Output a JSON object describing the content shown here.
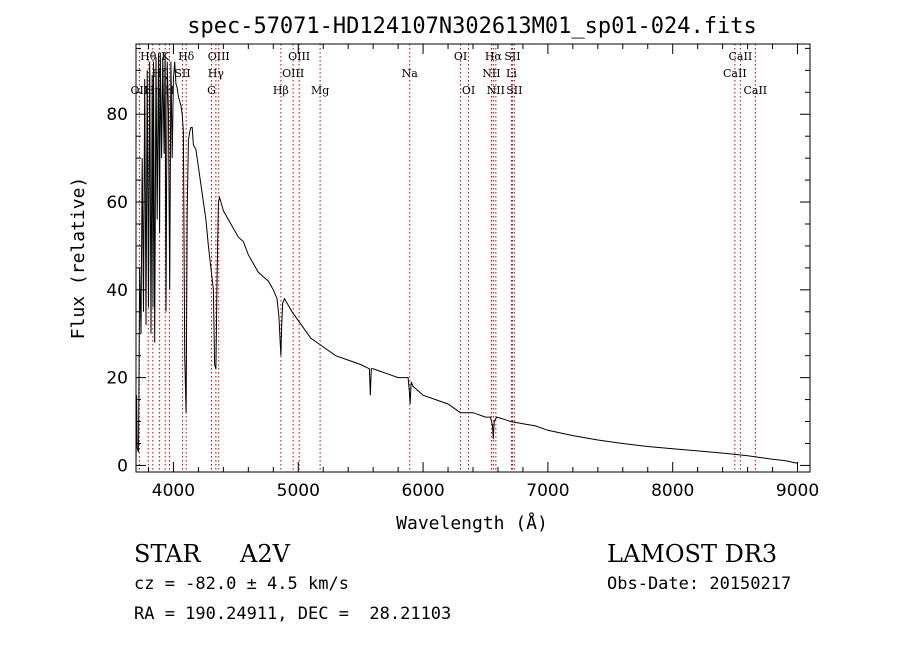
{
  "chart_data": {
    "type": "line",
    "title": "spec-57071-HD124107N302613M01_sp01-024.fits",
    "xlabel": "Wavelength (Å)",
    "ylabel": "Flux (relative)",
    "xlim": [
      3700,
      9100
    ],
    "ylim": [
      -1.5,
      96
    ],
    "x_ticks": [
      4000,
      5000,
      6000,
      7000,
      8000,
      9000
    ],
    "y_ticks": [
      0,
      20,
      40,
      60,
      80
    ],
    "grid": false,
    "series": [
      {
        "name": "spectrum",
        "x": [
          3700,
          3705,
          3710,
          3720,
          3730,
          3740,
          3750,
          3760,
          3770,
          3780,
          3790,
          3800,
          3810,
          3820,
          3830,
          3836,
          3840,
          3850,
          3860,
          3870,
          3880,
          3889,
          3895,
          3905,
          3915,
          3925,
          3933,
          3940,
          3950,
          3960,
          3970,
          3980,
          3990,
          4000,
          4010,
          4020,
          4030,
          4040,
          4050,
          4060,
          4070,
          4080,
          4090,
          4101,
          4110,
          4120,
          4130,
          4140,
          4150,
          4160,
          4180,
          4200,
          4220,
          4240,
          4260,
          4280,
          4300,
          4320,
          4330,
          4340,
          4350,
          4360,
          4370,
          4380,
          4400,
          4440,
          4480,
          4520,
          4560,
          4600,
          4640,
          4680,
          4720,
          4760,
          4800,
          4830,
          4845,
          4855,
          4861,
          4867,
          4875,
          4890,
          4910,
          4950,
          5000,
          5050,
          5100,
          5150,
          5200,
          5300,
          5400,
          5500,
          5570,
          5577,
          5585,
          5600,
          5700,
          5800,
          5880,
          5890,
          5896,
          5905,
          5920,
          6000,
          6100,
          6200,
          6300,
          6400,
          6500,
          6540,
          6556,
          6563,
          6570,
          6590,
          6650,
          6700,
          6800,
          6900,
          7000,
          7200,
          7400,
          7600,
          7800,
          8000,
          8200,
          8400,
          8500,
          8600,
          8700,
          8800,
          8900,
          9000
        ],
        "y": [
          0,
          16,
          4,
          3,
          45,
          30,
          70,
          35,
          88,
          32,
          90,
          36,
          92,
          30,
          89,
          36,
          92,
          28,
          93,
          56,
          94,
          53,
          94,
          70,
          93,
          71,
          94,
          35,
          92,
          80,
          40,
          92,
          70,
          88,
          92,
          87,
          86,
          84,
          83,
          82,
          80,
          76,
          25,
          12,
          58,
          74,
          76,
          77,
          77,
          73,
          72,
          68,
          64,
          60,
          56,
          50,
          45,
          40,
          23,
          22,
          43,
          60,
          61,
          60,
          58,
          56,
          54,
          52,
          51,
          48,
          46,
          44,
          43,
          42,
          40,
          38,
          34,
          28,
          25,
          32,
          37,
          38,
          37,
          35,
          33,
          31,
          29,
          28,
          27,
          25,
          24,
          23,
          22,
          16,
          22,
          22,
          21,
          20,
          20,
          17,
          14,
          19,
          18,
          16,
          15,
          14,
          12,
          12,
          11,
          11,
          9,
          6,
          10,
          11,
          10.5,
          10,
          9.5,
          9,
          8,
          6.8,
          5.8,
          5,
          4.3,
          3.8,
          3.3,
          2.8,
          2.5,
          2.2,
          1.8,
          1.4,
          1.1,
          0.5
        ]
      }
    ],
    "line_markers": [
      {
        "label": "OII",
        "x": 3727,
        "row": 3
      },
      {
        "label": "Hθ",
        "x": 3798,
        "row": 1
      },
      {
        "label": "Hη",
        "x": 3835,
        "row": 3
      },
      {
        "label": "Hζ",
        "x": 3889,
        "row": 2
      },
      {
        "label": "K",
        "x": 3934,
        "row": 1
      },
      {
        "label": "H",
        "x": 3969,
        "row": 3
      },
      {
        "label": "SII",
        "x": 4072,
        "row": 2
      },
      {
        "label": "Hδ",
        "x": 4102,
        "row": 1
      },
      {
        "label": "Hγ",
        "x": 4340,
        "row": 2
      },
      {
        "label": "OIII",
        "x": 4363,
        "row": 1
      },
      {
        "label": "G",
        "x": 4305,
        "row": 3
      },
      {
        "label": "Hβ",
        "x": 4861,
        "row": 3
      },
      {
        "label": "OIII",
        "x": 4959,
        "row": 2
      },
      {
        "label": "OIII",
        "x": 5007,
        "row": 1
      },
      {
        "label": "Mg",
        "x": 5175,
        "row": 3
      },
      {
        "label": "Na",
        "x": 5893,
        "row": 2
      },
      {
        "label": "OI",
        "x": 6300,
        "row": 1
      },
      {
        "label": "OI",
        "x": 6364,
        "row": 3
      },
      {
        "label": "NII",
        "x": 6548,
        "row": 2
      },
      {
        "label": "Hα",
        "x": 6563,
        "row": 1
      },
      {
        "label": "NII",
        "x": 6583,
        "row": 3
      },
      {
        "label": "SII",
        "x": 6716,
        "row": 1
      },
      {
        "label": "Li",
        "x": 6708,
        "row": 2
      },
      {
        "label": "SII",
        "x": 6731,
        "row": 3
      },
      {
        "label": "CaII",
        "x": 8498,
        "row": 2
      },
      {
        "label": "CaII",
        "x": 8542,
        "row": 1
      },
      {
        "label": "CaII",
        "x": 8662,
        "row": 3
      }
    ]
  },
  "info": {
    "object_class": "STAR",
    "subclass": "A2V",
    "survey": "LAMOST DR3",
    "redshift_line": "cz = -82.0 ± 4.5 km/s",
    "obs_date": "Obs-Date: 20150217",
    "coords": "RA = 190.24911, DEC =  28.21103"
  },
  "colors": {
    "line_marker": "#c00000",
    "spectrum": "#000000",
    "axis": "#000000"
  }
}
